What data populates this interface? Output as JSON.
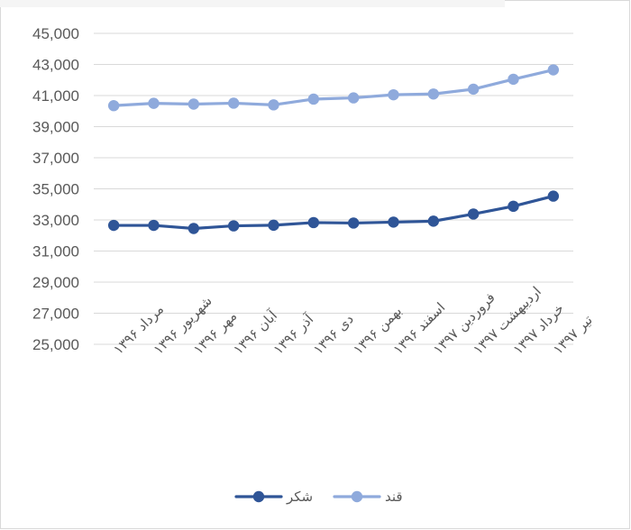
{
  "chart_data": {
    "type": "line",
    "title": "",
    "xlabel": "",
    "ylabel": "",
    "ylim": [
      25000,
      45000
    ],
    "ytick_step": 2000,
    "yticks": [
      "25,000",
      "27,000",
      "29,000",
      "31,000",
      "33,000",
      "35,000",
      "37,000",
      "39,000",
      "41,000",
      "43,000",
      "45,000"
    ],
    "grid": true,
    "legend_position": "bottom",
    "categories": [
      "مرداد ۱۳۹۶",
      "شهریور ۱۳۹۶",
      "مهر ۱۳۹۶",
      "آبان ۱۳۹۶",
      "آذر ۱۳۹۶",
      "دی ۱۳۹۶",
      "بهمن ۱۳۹۶",
      "اسفند ۱۳۹۶",
      "فروردین ۱۳۹۷",
      "اردیبهشت ۱۳۹۷",
      "خرداد ۱۳۹۷",
      "تیر ۱۳۹۷"
    ],
    "series": [
      {
        "name": "شکر",
        "color": "#2f5597",
        "values": [
          32650,
          32650,
          32450,
          32620,
          32660,
          32830,
          32800,
          32860,
          32920,
          33380,
          33880,
          34530
        ]
      },
      {
        "name": "قند",
        "color": "#8faadc",
        "values": [
          40350,
          40500,
          40450,
          40510,
          40400,
          40770,
          40850,
          41050,
          41100,
          41410,
          42050,
          42650
        ]
      }
    ]
  }
}
